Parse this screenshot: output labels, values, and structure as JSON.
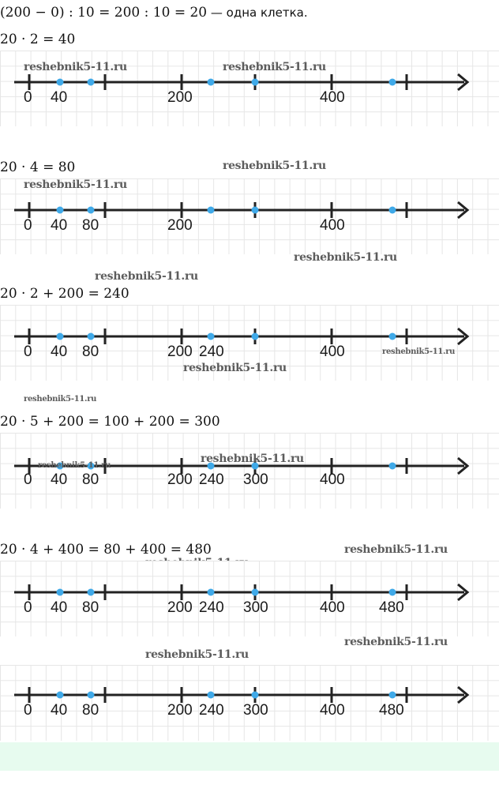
{
  "intro": {
    "formula": "(200 − 0) : 10 = 200 : 10 = 20",
    "note": " — одна клетка."
  },
  "sections": [
    {
      "equation": "20 · 2 = 40",
      "labels": [
        "0",
        "40",
        "200",
        "400"
      ]
    },
    {
      "equation": "20 · 4 = 80",
      "labels": [
        "0",
        "40",
        "80",
        "200",
        "400"
      ]
    },
    {
      "equation": "20 · 2 + 200 = 240",
      "labels": [
        "0",
        "40",
        "80",
        "200",
        "240",
        "400"
      ]
    },
    {
      "equation": "20 · 5 + 200 = 100 + 200 = 300",
      "labels": [
        "0",
        "40",
        "80",
        "200",
        "240",
        "300",
        "400"
      ]
    },
    {
      "equation": "20 · 4 + 400 = 80 + 400 = 480",
      "labels": [
        "0",
        "40",
        "80",
        "200",
        "240",
        "300",
        "400",
        "480"
      ]
    },
    {
      "equation": "",
      "labels": [
        "0",
        "40",
        "80",
        "200",
        "240",
        "300",
        "400",
        "480"
      ]
    }
  ],
  "watermark": "reshebnik5-11.ru",
  "colors": {
    "axis": "#222222",
    "point": "#3fa9e8",
    "grid": "#e6e6e6",
    "footer": "#e7fbef"
  }
}
